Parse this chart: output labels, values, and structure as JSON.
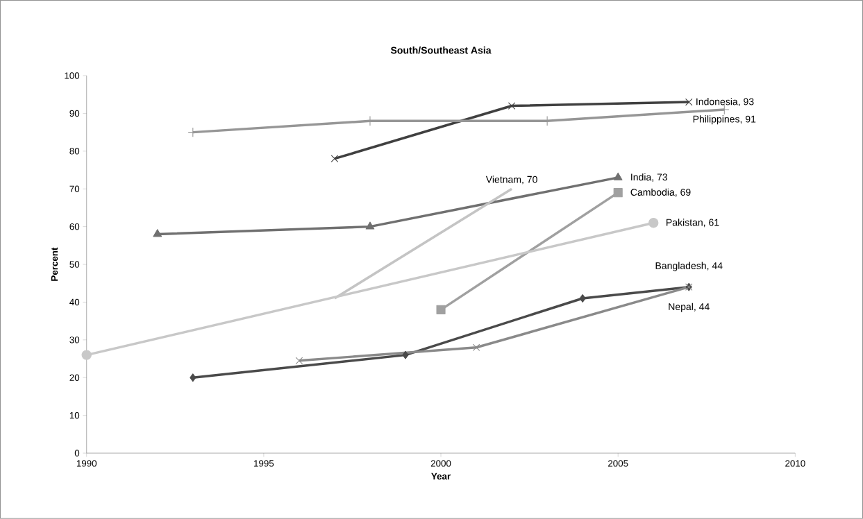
{
  "chart_data": {
    "type": "line",
    "title": "South/Southeast Asia",
    "xlabel": "Year",
    "ylabel": "Percent",
    "xlim": [
      1990,
      2010
    ],
    "xticks": [
      1990,
      1995,
      2000,
      2005,
      2010
    ],
    "ylim": [
      0,
      100
    ],
    "yticks": [
      0,
      10,
      20,
      30,
      40,
      50,
      60,
      70,
      80,
      90,
      100
    ],
    "grid": false,
    "series": [
      {
        "color": "#404040",
        "marker": "cross",
        "x": [
          1997,
          2002,
          2007
        ],
        "values": [
          78,
          92,
          93
        ]
      },
      {
        "color": "#969696",
        "marker": "plus",
        "x": [
          1993,
          1998,
          2003,
          2008
        ],
        "values": [
          85,
          88,
          88,
          91
        ]
      },
      {
        "color": "#707070",
        "marker": "triangle",
        "x": [
          1992,
          1998,
          2005
        ],
        "values": [
          58,
          60,
          73
        ]
      },
      {
        "color": "#c4c4c4",
        "marker": "none",
        "x": [
          1997,
          2002
        ],
        "values": [
          41,
          70
        ]
      },
      {
        "color": "#a0a0a0",
        "marker": "square",
        "x": [
          2000,
          2005
        ],
        "values": [
          38,
          69
        ]
      },
      {
        "color": "#c8c8c8",
        "marker": "circle",
        "x": [
          1990,
          2006
        ],
        "values": [
          26,
          61
        ]
      },
      {
        "color": "#4a4a4a",
        "marker": "diamond",
        "x": [
          1993,
          1999,
          2004,
          2007
        ],
        "values": [
          20,
          26,
          41,
          44
        ]
      },
      {
        "color": "#8a8a8a",
        "marker": "cross",
        "x": [
          1996,
          2001,
          2007
        ],
        "values": [
          24.5,
          28,
          44
        ]
      }
    ],
    "annotations": [
      {
        "text": "Indonesia, 93",
        "x": 2007,
        "y": 93
      },
      {
        "text": "Philippines, 91",
        "x": 2008,
        "y": 91
      },
      {
        "text": "India, 73",
        "x": 2005,
        "y": 73
      },
      {
        "text": "Vietnam, 70",
        "x": 2002,
        "y": 70
      },
      {
        "text": "Cambodia, 69",
        "x": 2005,
        "y": 69
      },
      {
        "text": "Pakistan, 61",
        "x": 2006,
        "y": 61
      },
      {
        "text": "Bangladesh, 44",
        "x": 2007,
        "y": 44
      },
      {
        "text": "Nepal, 44",
        "x": 2007,
        "y": 44
      }
    ]
  }
}
